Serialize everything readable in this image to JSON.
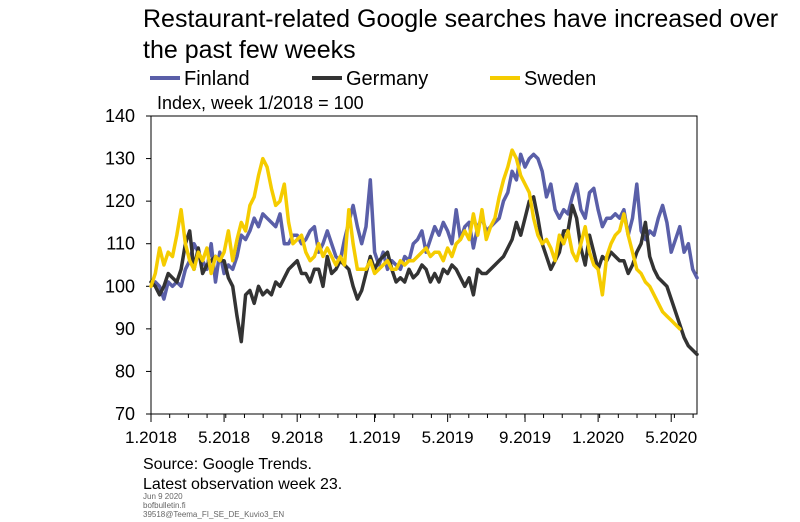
{
  "title": "Restaurant-related Google searches have increased over the past few weeks",
  "subtitle": "Index, week 1/2018 = 100",
  "source": "Source: Google Trends.",
  "note": "Latest observation week 23.",
  "footer": [
    "Jun 9 2020",
    "bofbulletin.fi",
    "39518@Teema_FI_SE_DE_Kuvio3_EN"
  ],
  "chart_data": {
    "type": "line",
    "title": "Restaurant-related Google searches have increased over the past few weeks",
    "ylabel": "Index, week 1/2018 = 100",
    "xlabel": "",
    "ylim": [
      70,
      140
    ],
    "yticks": [
      70,
      80,
      90,
      100,
      110,
      120,
      130,
      140
    ],
    "xlim": [
      1,
      128
    ],
    "xticks": [
      {
        "x": 1,
        "label": "1.2018"
      },
      {
        "x": 18,
        "label": "5.2018"
      },
      {
        "x": 35,
        "label": "9.2018"
      },
      {
        "x": 53,
        "label": "1.2019"
      },
      {
        "x": 70,
        "label": "5.2019"
      },
      {
        "x": 88,
        "label": "9.2019"
      },
      {
        "x": 105,
        "label": "1.2020"
      },
      {
        "x": 122,
        "label": "5.2020"
      }
    ],
    "legend_position": "top",
    "grid": false,
    "series": [
      {
        "name": "Finland",
        "color": "#5a5fa8",
        "values": [
          100,
          101,
          100,
          97,
          101,
          100,
          101,
          100,
          104,
          106,
          110,
          108,
          106,
          104,
          110,
          101,
          108,
          103,
          105,
          104,
          107,
          112,
          111,
          113,
          116,
          114,
          117,
          116,
          115,
          114,
          117,
          110,
          110,
          112,
          112,
          110,
          111,
          113,
          114,
          108,
          110,
          113,
          110,
          107,
          106,
          111,
          115,
          119,
          114,
          110,
          114,
          125,
          108,
          105,
          108,
          104,
          106,
          105,
          104,
          107,
          106,
          110,
          111,
          113,
          108,
          111,
          114,
          112,
          115,
          113,
          110,
          118,
          111,
          114,
          115,
          109,
          114,
          116,
          113,
          114,
          115,
          116,
          120,
          122,
          127,
          125,
          131,
          128,
          130,
          131,
          130,
          127,
          121,
          124,
          118,
          116,
          118,
          117,
          121,
          124,
          118,
          116,
          122,
          123,
          118,
          114,
          116,
          116,
          117,
          116,
          118,
          112,
          116,
          124,
          113,
          111,
          113,
          112,
          116,
          119,
          115,
          108,
          111,
          114,
          108,
          110,
          104,
          102
        ]
      },
      {
        "name": "Germany",
        "color": "#333333",
        "values": [
          101,
          100,
          98,
          100,
          103,
          102,
          101,
          104,
          110,
          113,
          104,
          109,
          103,
          105,
          106,
          107,
          106,
          106,
          102,
          100,
          93,
          87,
          98,
          99,
          96,
          100,
          98,
          99,
          98,
          101,
          100,
          102,
          104,
          105,
          106,
          103,
          103,
          101,
          104,
          104,
          100,
          107,
          103,
          104,
          106,
          105,
          104,
          100,
          97,
          99,
          103,
          107,
          104,
          106,
          107,
          108,
          104,
          101,
          102,
          101,
          104,
          102,
          103,
          105,
          104,
          101,
          103,
          101,
          104,
          103,
          105,
          104,
          102,
          100,
          102,
          98,
          104,
          103,
          103,
          104,
          105,
          106,
          107,
          109,
          111,
          115,
          112,
          116,
          120,
          121,
          116,
          110,
          107,
          104,
          106,
          108,
          113,
          113,
          119,
          116,
          109,
          105,
          112,
          108,
          104,
          107,
          106,
          108,
          107,
          106,
          106,
          103,
          105,
          108,
          110,
          115,
          107,
          104,
          102,
          101,
          100,
          97,
          94,
          91,
          88,
          86,
          85,
          84
        ]
      },
      {
        "name": "Sweden",
        "color": "#f5cc00",
        "values": [
          100,
          103,
          109,
          105,
          108,
          107,
          112,
          118,
          110,
          106,
          104,
          108,
          106,
          109,
          103,
          107,
          106,
          108,
          113,
          106,
          111,
          115,
          113,
          119,
          121,
          126,
          130,
          128,
          123,
          119,
          120,
          124,
          115,
          110,
          111,
          112,
          108,
          106,
          107,
          110,
          107,
          109,
          107,
          105,
          107,
          105,
          118,
          110,
          104,
          104,
          104,
          106,
          103,
          104,
          105,
          106,
          104,
          104,
          106,
          105,
          106,
          106,
          107,
          108,
          109,
          107,
          108,
          108,
          106,
          109,
          107,
          110,
          111,
          113,
          111,
          117,
          112,
          118,
          111,
          114,
          116,
          121,
          125,
          128,
          132,
          130,
          126,
          124,
          122,
          116,
          112,
          110,
          111,
          109,
          106,
          112,
          110,
          113,
          108,
          106,
          110,
          114,
          108,
          105,
          104,
          98,
          107,
          110,
          112,
          113,
          117,
          112,
          108,
          104,
          103,
          101,
          100,
          98,
          96,
          94,
          93,
          92,
          91,
          90
        ]
      }
    ]
  }
}
